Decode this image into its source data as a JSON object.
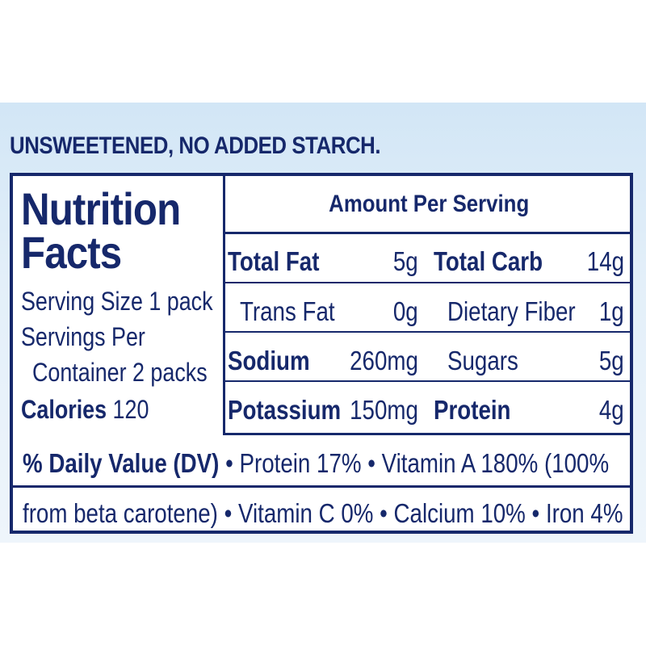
{
  "headline": "UNSWEETENED, NO ADDED STARCH.",
  "label": {
    "title_line1": "Nutrition",
    "title_line2": "Facts",
    "serving_size": "Serving Size 1 pack",
    "servings_per_1": "Servings Per",
    "servings_per_2": "Container 2 packs",
    "calories_label": "Calories",
    "calories_value": "120",
    "amount_header": "Amount Per Serving",
    "rows": [
      {
        "left_name": "Total Fat",
        "left_value": "5g",
        "right_name": "Total Carb",
        "right_value": "14g"
      },
      {
        "left_name": "Trans Fat",
        "left_value": "0g",
        "right_name": "Dietary Fiber",
        "right_value": "1g"
      },
      {
        "left_name": "Sodium",
        "left_value": "260mg",
        "right_name": "Sugars",
        "right_value": "5g"
      },
      {
        "left_name": "Potassium",
        "left_value": "150mg",
        "right_name": "Protein",
        "right_value": "4g"
      }
    ],
    "dv_label": "% Daily Value (DV)",
    "dv_line1_rest": " • Protein 17% • Vitamin A 180% (100%",
    "dv_line2": "from beta carotene) • Vitamin C 0% • Calcium 10% • Iron 4%"
  },
  "colors": {
    "ink": "#16286b",
    "band": "#d9eaf7",
    "panel": "#ffffff"
  }
}
